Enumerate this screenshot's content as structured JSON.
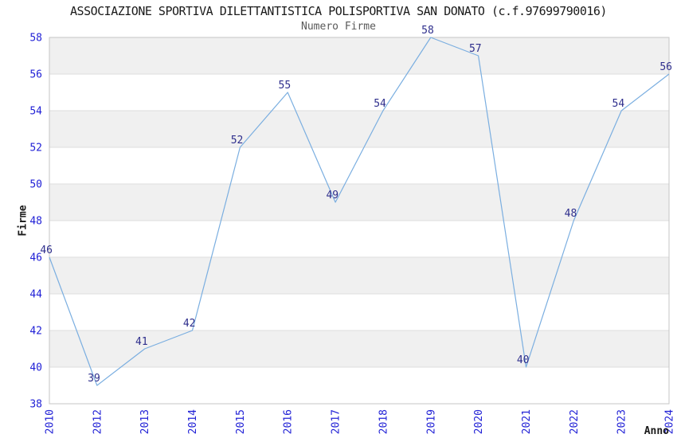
{
  "chart_data": {
    "type": "line",
    "title": "ASSOCIAZIONE SPORTIVA DILETTANTISTICA POLISPORTIVA SAN DONATO (c.f.97699790016)",
    "subtitle": "Numero Firme",
    "xlabel": "Anno",
    "ylabel": "Firme",
    "categories": [
      "2010",
      "2012",
      "2013",
      "2014",
      "2015",
      "2016",
      "2017",
      "2018",
      "2019",
      "2020",
      "2021",
      "2022",
      "2023",
      "2024"
    ],
    "values": [
      46,
      39,
      41,
      42,
      52,
      55,
      49,
      54,
      58,
      57,
      40,
      48,
      54,
      56
    ],
    "ylim": [
      38,
      58
    ],
    "ytick_step": 2,
    "yticks": [
      38,
      40,
      42,
      44,
      46,
      48,
      50,
      52,
      54,
      56,
      58
    ],
    "grid": true,
    "alternating_bands": true,
    "legend": "none",
    "point_labels": true,
    "colors": {
      "line": "#7aaee0",
      "tick_label": "#2121d6",
      "point_label": "#2e2e8c",
      "band": "#f0f0f0",
      "grid": "#dedede",
      "border": "#c6c6c6",
      "title": "#1a1a1a",
      "subtitle": "#595959",
      "axis_label": "#1a1a1a",
      "background": "#ffffff"
    }
  }
}
